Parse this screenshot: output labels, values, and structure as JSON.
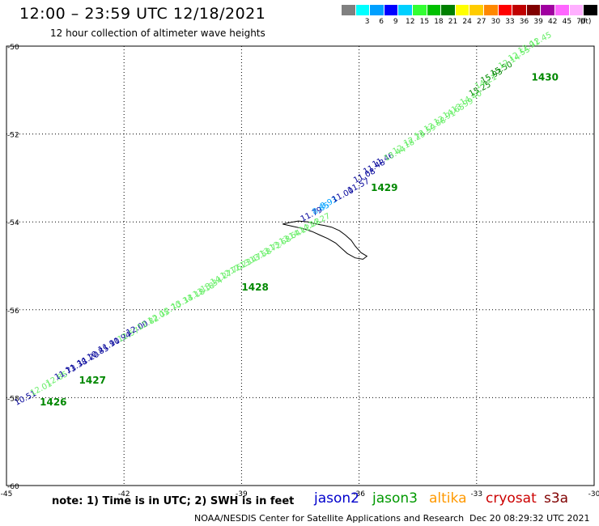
{
  "header": {
    "title": "12:00 – 23:59 UTC 12/18/2021",
    "subtitle": "12 hour collection of altimeter wave heights"
  },
  "color_scale": {
    "unit": "(ft)",
    "bins": [
      {
        "label": "",
        "color": "#808080"
      },
      {
        "label": "3",
        "color": "#00ffff"
      },
      {
        "label": "6",
        "color": "#00a0ff"
      },
      {
        "label": "9",
        "color": "#0000ff"
      },
      {
        "label": "12",
        "color": "#00d0ff"
      },
      {
        "label": "15",
        "color": "#33ff33"
      },
      {
        "label": "18",
        "color": "#00c000"
      },
      {
        "label": "21",
        "color": "#008000"
      },
      {
        "label": "24",
        "color": "#ffff00"
      },
      {
        "label": "27",
        "color": "#ffcc00"
      },
      {
        "label": "30",
        "color": "#ff8800"
      },
      {
        "label": "33",
        "color": "#ff0000"
      },
      {
        "label": "36",
        "color": "#c00000"
      },
      {
        "label": "39",
        "color": "#800000"
      },
      {
        "label": "42",
        "color": "#a000a0"
      },
      {
        "label": "45",
        "color": "#ff66ff"
      },
      {
        "label": "70",
        "color": "#ffb0ff"
      },
      {
        "label": "",
        "color": "#000000"
      }
    ]
  },
  "footer": {
    "note": "note: 1) Time is in UTC; 2) SWH is in feet",
    "satellites": [
      {
        "name": "jason2",
        "color": "#0000cc"
      },
      {
        "name": "jason3",
        "color": "#009900"
      },
      {
        "name": "altika",
        "color": "#ff9900"
      },
      {
        "name": "cryosat",
        "color": "#cc0000"
      },
      {
        "name": "s3a",
        "color": "#800000"
      }
    ],
    "credit": "NOAA/NESDIS Center for Satellite Applications and Research",
    "timestamp": "Dec 20 08:29:32 UTC 2021"
  },
  "chart_data": {
    "type": "scatter",
    "xlim": [
      -45,
      -30
    ],
    "ylim": [
      -60,
      -50
    ],
    "x_ticks": [
      -45,
      -42,
      -39,
      -36,
      -33,
      -30
    ],
    "x_tick_labels": [
      "-45",
      "-42",
      "-39",
      "-36",
      "-33",
      "-30"
    ],
    "y_ticks": [
      -50,
      -52,
      -54,
      -56,
      -58,
      -60
    ],
    "y_tick_labels": [
      "-50",
      "-52",
      "-54",
      "-56",
      "-58",
      "-60"
    ],
    "grid": true,
    "colors": {
      "light": "#66ee66",
      "dark_blue": "#000099",
      "cyan": "#00a0ff",
      "pass": "#008800"
    },
    "points": [
      {
        "lon": -44.75,
        "lat": -58.18,
        "label": "10.51",
        "color": "dark_blue"
      },
      {
        "lon": -44.35,
        "lat": -57.96,
        "label": "12.01",
        "color": "light"
      },
      {
        "lon": -43.95,
        "lat": -57.74,
        "label": "12.85",
        "color": "light"
      },
      {
        "lon": -43.73,
        "lat": -57.6,
        "label": "11.73",
        "color": "dark_blue"
      },
      {
        "lon": -43.45,
        "lat": -57.45,
        "label": "11.38",
        "color": "dark_blue"
      },
      {
        "lon": -43.15,
        "lat": -57.29,
        "label": "11.20",
        "color": "dark_blue"
      },
      {
        "lon": -42.9,
        "lat": -57.15,
        "label": "10.85",
        "color": "dark_blue"
      },
      {
        "lon": -42.62,
        "lat": -56.98,
        "label": "11.90",
        "color": "dark_blue"
      },
      {
        "lon": -42.33,
        "lat": -56.84,
        "label": "11.94",
        "color": "dark_blue"
      },
      {
        "lon": -42.12,
        "lat": -56.74,
        "label": "12.57",
        "color": "light"
      },
      {
        "lon": -41.9,
        "lat": -56.59,
        "label": "12.00",
        "color": "dark_blue"
      },
      {
        "lon": -41.62,
        "lat": -56.47,
        "label": "12.82",
        "color": "light"
      },
      {
        "lon": -41.35,
        "lat": -56.32,
        "label": "12.05",
        "color": "light"
      },
      {
        "lon": -41.05,
        "lat": -56.16,
        "label": "12.70",
        "color": "light"
      },
      {
        "lon": -40.75,
        "lat": -56.0,
        "label": "13.34",
        "color": "light"
      },
      {
        "lon": -40.45,
        "lat": -55.86,
        "label": "13.18",
        "color": "light"
      },
      {
        "lon": -40.2,
        "lat": -55.72,
        "label": "13.18",
        "color": "light"
      },
      {
        "lon": -40.0,
        "lat": -55.6,
        "label": "13.34",
        "color": "light"
      },
      {
        "lon": -39.75,
        "lat": -55.44,
        "label": "14.27",
        "color": "light"
      },
      {
        "lon": -39.5,
        "lat": -55.3,
        "label": "12.76",
        "color": "light"
      },
      {
        "lon": -39.25,
        "lat": -55.18,
        "label": "12.23",
        "color": "light"
      },
      {
        "lon": -39.0,
        "lat": -55.06,
        "label": "13.47",
        "color": "light"
      },
      {
        "lon": -38.75,
        "lat": -54.94,
        "label": "13.58",
        "color": "light"
      },
      {
        "lon": -38.5,
        "lat": -54.8,
        "label": "13.72",
        "color": "light"
      },
      {
        "lon": -38.25,
        "lat": -54.66,
        "label": "13.68",
        "color": "light"
      },
      {
        "lon": -38.0,
        "lat": -54.52,
        "label": "13.64",
        "color": "light"
      },
      {
        "lon": -37.75,
        "lat": -54.4,
        "label": "14.12",
        "color": "light"
      },
      {
        "lon": -37.5,
        "lat": -54.26,
        "label": "14.13",
        "color": "light"
      },
      {
        "lon": -37.25,
        "lat": -54.14,
        "label": "14.27",
        "color": "light"
      },
      {
        "lon": -37.45,
        "lat": -54.0,
        "label": "11.79",
        "color": "dark_blue"
      },
      {
        "lon": -37.15,
        "lat": -53.84,
        "label": "8.65",
        "color": "cyan"
      },
      {
        "lon": -36.95,
        "lat": -53.71,
        "label": "8.93",
        "color": "cyan"
      },
      {
        "lon": -36.65,
        "lat": -53.56,
        "label": "11.00",
        "color": "dark_blue"
      },
      {
        "lon": -36.25,
        "lat": -53.35,
        "label": "11.57",
        "color": "dark_blue"
      },
      {
        "lon": -36.1,
        "lat": -53.12,
        "label": "11.08",
        "color": "dark_blue"
      },
      {
        "lon": -35.85,
        "lat": -52.92,
        "label": "11.48",
        "color": "dark_blue"
      },
      {
        "lon": -35.62,
        "lat": -52.76,
        "label": "11.46",
        "color": "dark_blue"
      },
      {
        "lon": -35.32,
        "lat": -52.62,
        "label": "13.44",
        "color": "light"
      },
      {
        "lon": -35.1,
        "lat": -52.46,
        "label": "12.18",
        "color": "light"
      },
      {
        "lon": -34.82,
        "lat": -52.28,
        "label": "12.29",
        "color": "light"
      },
      {
        "lon": -34.55,
        "lat": -52.12,
        "label": "13.59",
        "color": "light"
      },
      {
        "lon": -34.3,
        "lat": -51.96,
        "label": "12.88",
        "color": "light"
      },
      {
        "lon": -34.05,
        "lat": -51.8,
        "label": "12.91",
        "color": "light"
      },
      {
        "lon": -33.82,
        "lat": -51.65,
        "label": "14.65",
        "color": "light"
      },
      {
        "lon": -33.6,
        "lat": -51.52,
        "label": "13.99",
        "color": "light"
      },
      {
        "lon": -33.38,
        "lat": -51.35,
        "label": "14.40",
        "color": "light"
      },
      {
        "lon": -33.15,
        "lat": -51.15,
        "label": "15.25",
        "color": "pass"
      },
      {
        "lon": -33.0,
        "lat": -50.98,
        "label": "14.21",
        "color": "light"
      },
      {
        "lon": -32.85,
        "lat": -50.85,
        "label": "15.93",
        "color": "pass"
      },
      {
        "lon": -32.6,
        "lat": -50.69,
        "label": "15.50",
        "color": "pass"
      },
      {
        "lon": -32.4,
        "lat": -50.52,
        "label": "12.14",
        "color": "light"
      },
      {
        "lon": -32.15,
        "lat": -50.35,
        "label": "12.55",
        "color": "light"
      },
      {
        "lon": -31.9,
        "lat": -50.18,
        "label": "12.91",
        "color": "light"
      },
      {
        "lon": -31.6,
        "lat": -50.02,
        "label": "12.45",
        "color": "light"
      }
    ],
    "pass_labels": [
      {
        "lon": -44.15,
        "lat": -58.18,
        "label": "1426"
      },
      {
        "lon": -43.15,
        "lat": -57.68,
        "label": "1427"
      },
      {
        "lon": -39.0,
        "lat": -55.56,
        "label": "1428"
      },
      {
        "lon": -35.7,
        "lat": -53.3,
        "label": "1429"
      },
      {
        "lon": -31.6,
        "lat": -50.78,
        "label": "1430"
      }
    ],
    "coastline": [
      [
        -37.8,
        -54.02
      ],
      [
        -37.55,
        -53.98
      ],
      [
        -37.3,
        -54.0
      ],
      [
        -37.1,
        -54.05
      ],
      [
        -36.9,
        -54.08
      ],
      [
        -36.7,
        -54.12
      ],
      [
        -36.5,
        -54.2
      ],
      [
        -36.35,
        -54.3
      ],
      [
        -36.2,
        -54.42
      ],
      [
        -36.1,
        -54.55
      ],
      [
        -35.95,
        -54.7
      ],
      [
        -35.8,
        -54.78
      ],
      [
        -35.9,
        -54.85
      ],
      [
        -36.1,
        -54.82
      ],
      [
        -36.3,
        -54.72
      ],
      [
        -36.45,
        -54.6
      ],
      [
        -36.6,
        -54.48
      ],
      [
        -36.8,
        -54.38
      ],
      [
        -37.0,
        -54.3
      ],
      [
        -37.2,
        -54.22
      ],
      [
        -37.45,
        -54.15
      ],
      [
        -37.7,
        -54.1
      ],
      [
        -37.95,
        -54.05
      ],
      [
        -37.8,
        -54.02
      ]
    ]
  }
}
